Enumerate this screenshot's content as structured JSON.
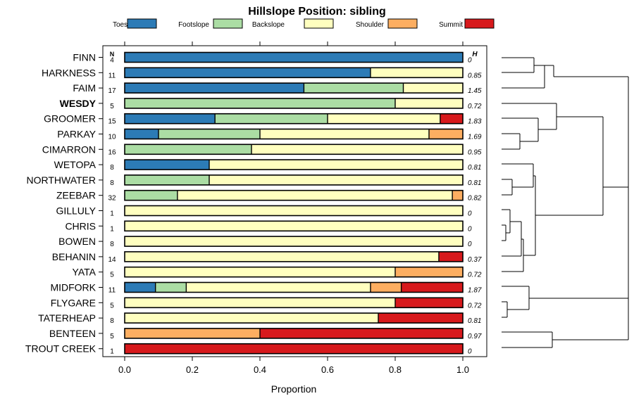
{
  "chart_data": {
    "type": "bar",
    "stacked": true,
    "orientation": "horizontal",
    "title": "Hillslope Position: sibling",
    "xlabel": "Proportion",
    "ylabel": "",
    "xlim": [
      0,
      1
    ],
    "xticks": [
      "0.0",
      "0.2",
      "0.4",
      "0.6",
      "0.8",
      "1.0"
    ],
    "n_header": "N",
    "h_header": "H",
    "highlighted": "WESDY",
    "legend_placement": "top",
    "series": [
      {
        "name": "Toeslope",
        "color": "#2c7bb6"
      },
      {
        "name": "Footslope",
        "color": "#abdda4"
      },
      {
        "name": "Backslope",
        "color": "#ffffbf"
      },
      {
        "name": "Shoulder",
        "color": "#fdae61"
      },
      {
        "name": "Summit",
        "color": "#d7191c"
      }
    ],
    "categories": [
      {
        "name": "FINN",
        "n": "4",
        "h": "0",
        "values": [
          1.0,
          0,
          0,
          0,
          0
        ]
      },
      {
        "name": "HARKNESS",
        "n": "11",
        "h": "0.85",
        "values": [
          0.727,
          0,
          0.273,
          0,
          0
        ]
      },
      {
        "name": "FAIM",
        "n": "17",
        "h": "1.45",
        "values": [
          0.53,
          0.294,
          0.176,
          0,
          0
        ]
      },
      {
        "name": "WESDY",
        "n": "5",
        "h": "0.72",
        "values": [
          0,
          0.8,
          0.2,
          0,
          0
        ]
      },
      {
        "name": "GROOMER",
        "n": "15",
        "h": "1.83",
        "values": [
          0.267,
          0.333,
          0.333,
          0,
          0.067
        ]
      },
      {
        "name": "PARKAY",
        "n": "10",
        "h": "1.69",
        "values": [
          0.1,
          0.3,
          0.5,
          0.1,
          0
        ]
      },
      {
        "name": "CIMARRON",
        "n": "16",
        "h": "0.95",
        "values": [
          0,
          0.375,
          0.625,
          0,
          0
        ]
      },
      {
        "name": "WETOPA",
        "n": "8",
        "h": "0.81",
        "values": [
          0.25,
          0,
          0.75,
          0,
          0
        ]
      },
      {
        "name": "NORTHWATER",
        "n": "8",
        "h": "0.81",
        "values": [
          0,
          0.25,
          0.75,
          0,
          0
        ]
      },
      {
        "name": "ZEEBAR",
        "n": "32",
        "h": "0.82",
        "values": [
          0,
          0.156,
          0.813,
          0.031,
          0
        ]
      },
      {
        "name": "GILLULY",
        "n": "1",
        "h": "0",
        "values": [
          0,
          0,
          1.0,
          0,
          0
        ]
      },
      {
        "name": "CHRIS",
        "n": "1",
        "h": "0",
        "values": [
          0,
          0,
          1.0,
          0,
          0
        ]
      },
      {
        "name": "BOWEN",
        "n": "8",
        "h": "0",
        "values": [
          0,
          0,
          1.0,
          0,
          0
        ]
      },
      {
        "name": "BEHANIN",
        "n": "14",
        "h": "0.37",
        "values": [
          0,
          0,
          0.929,
          0,
          0.071
        ]
      },
      {
        "name": "YATA",
        "n": "5",
        "h": "0.72",
        "values": [
          0,
          0,
          0.8,
          0.2,
          0
        ]
      },
      {
        "name": "MIDFORK",
        "n": "11",
        "h": "1.87",
        "values": [
          0.091,
          0.091,
          0.545,
          0.091,
          0.182
        ]
      },
      {
        "name": "FLYGARE",
        "n": "5",
        "h": "0.72",
        "values": [
          0,
          0,
          0.8,
          0,
          0.2
        ]
      },
      {
        "name": "TATERHEAP",
        "n": "8",
        "h": "0.81",
        "values": [
          0,
          0,
          0.75,
          0,
          0.25
        ]
      },
      {
        "name": "BENTEEN",
        "n": "5",
        "h": "0.97",
        "values": [
          0,
          0,
          0,
          0.4,
          0.6
        ]
      },
      {
        "name": "TROUT CREEK",
        "n": "1",
        "h": "0",
        "values": [
          0,
          0,
          0,
          0,
          1.0
        ]
      }
    ]
  }
}
